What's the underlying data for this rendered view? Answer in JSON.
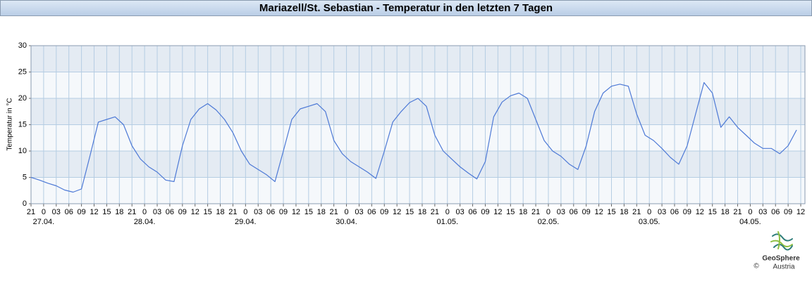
{
  "chart_data": {
    "type": "line",
    "title": "Mariazell/St. Sebastian - Temperatur in den letzten 7 Tagen",
    "ylabel": "Temperatur in °C",
    "color": "#4d79d6",
    "grid": true,
    "ylim": [
      0,
      30
    ],
    "yticks": [
      0,
      5,
      10,
      15,
      20,
      25,
      30
    ],
    "xlim": [
      "26.04. 21:00",
      "04.05. 13:00"
    ],
    "xticks": [
      {
        "value": "26.04. 21:00",
        "label": "21"
      },
      {
        "value": "27.04. 00:00",
        "label": "0"
      },
      {
        "value": "27.04. 03:00",
        "label": "03"
      },
      {
        "value": "27.04. 06:00",
        "label": "06"
      },
      {
        "value": "27.04. 09:00",
        "label": "09"
      },
      {
        "value": "27.04. 12:00",
        "label": "12"
      },
      {
        "value": "27.04. 15:00",
        "label": "15"
      },
      {
        "value": "27.04. 18:00",
        "label": "18"
      },
      {
        "value": "27.04. 21:00",
        "label": "21"
      },
      {
        "value": "28.04. 00:00",
        "label": "0"
      },
      {
        "value": "28.04. 03:00",
        "label": "03"
      },
      {
        "value": "28.04. 06:00",
        "label": "06"
      },
      {
        "value": "28.04. 09:00",
        "label": "09"
      },
      {
        "value": "28.04. 12:00",
        "label": "12"
      },
      {
        "value": "28.04. 15:00",
        "label": "15"
      },
      {
        "value": "28.04. 18:00",
        "label": "18"
      },
      {
        "value": "28.04. 21:00",
        "label": "21"
      },
      {
        "value": "29.04. 00:00",
        "label": "0"
      },
      {
        "value": "29.04. 03:00",
        "label": "03"
      },
      {
        "value": "29.04. 06:00",
        "label": "06"
      },
      {
        "value": "29.04. 09:00",
        "label": "09"
      },
      {
        "value": "29.04. 12:00",
        "label": "12"
      },
      {
        "value": "29.04. 15:00",
        "label": "15"
      },
      {
        "value": "29.04. 18:00",
        "label": "18"
      },
      {
        "value": "29.04. 21:00",
        "label": "21"
      },
      {
        "value": "30.04. 00:00",
        "label": "0"
      },
      {
        "value": "30.04. 03:00",
        "label": "03"
      },
      {
        "value": "30.04. 06:00",
        "label": "06"
      },
      {
        "value": "30.04. 09:00",
        "label": "09"
      },
      {
        "value": "30.04. 12:00",
        "label": "12"
      },
      {
        "value": "30.04. 15:00",
        "label": "15"
      },
      {
        "value": "30.04. 18:00",
        "label": "18"
      },
      {
        "value": "30.04. 21:00",
        "label": "21"
      },
      {
        "value": "01.05. 00:00",
        "label": "0"
      },
      {
        "value": "01.05. 03:00",
        "label": "03"
      },
      {
        "value": "01.05. 06:00",
        "label": "06"
      },
      {
        "value": "01.05. 09:00",
        "label": "09"
      },
      {
        "value": "01.05. 12:00",
        "label": "12"
      },
      {
        "value": "01.05. 15:00",
        "label": "15"
      },
      {
        "value": "01.05. 18:00",
        "label": "18"
      },
      {
        "value": "01.05. 21:00",
        "label": "21"
      },
      {
        "value": "02.05. 00:00",
        "label": "0"
      },
      {
        "value": "02.05. 03:00",
        "label": "03"
      },
      {
        "value": "02.05. 06:00",
        "label": "06"
      },
      {
        "value": "02.05. 09:00",
        "label": "09"
      },
      {
        "value": "02.05. 12:00",
        "label": "12"
      },
      {
        "value": "02.05. 15:00",
        "label": "15"
      },
      {
        "value": "02.05. 18:00",
        "label": "18"
      },
      {
        "value": "02.05. 21:00",
        "label": "21"
      },
      {
        "value": "03.05. 00:00",
        "label": "0"
      },
      {
        "value": "03.05. 03:00",
        "label": "03"
      },
      {
        "value": "03.05. 06:00",
        "label": "06"
      },
      {
        "value": "03.05. 09:00",
        "label": "09"
      },
      {
        "value": "03.05. 12:00",
        "label": "12"
      },
      {
        "value": "03.05. 15:00",
        "label": "15"
      },
      {
        "value": "03.05. 18:00",
        "label": "18"
      },
      {
        "value": "03.05. 21:00",
        "label": "21"
      },
      {
        "value": "04.05. 00:00",
        "label": "0"
      },
      {
        "value": "04.05. 03:00",
        "label": "03"
      },
      {
        "value": "04.05. 06:00",
        "label": "06"
      },
      {
        "value": "04.05. 09:00",
        "label": "09"
      },
      {
        "value": "04.05. 12:00",
        "label": "12"
      }
    ],
    "date_ticks": [
      {
        "value": "27.04. 00:00",
        "label": "27.04."
      },
      {
        "value": "28.04. 00:00",
        "label": "28.04."
      },
      {
        "value": "29.04. 00:00",
        "label": "29.04."
      },
      {
        "value": "30.04. 00:00",
        "label": "30.04."
      },
      {
        "value": "01.05. 00:00",
        "label": "01.05."
      },
      {
        "value": "02.05. 00:00",
        "label": "02.05."
      },
      {
        "value": "03.05. 00:00",
        "label": "03.05."
      },
      {
        "value": "04.05. 00:00",
        "label": "04.05."
      }
    ],
    "x": [
      "26.04. 21:00",
      "26.04. 23:00",
      "27.04. 01:00",
      "27.04. 03:00",
      "27.04. 05:00",
      "27.04. 07:00",
      "27.04. 09:00",
      "27.04. 11:00",
      "27.04. 13:00",
      "27.04. 15:00",
      "27.04. 17:00",
      "27.04. 19:00",
      "27.04. 21:00",
      "27.04. 23:00",
      "28.04. 01:00",
      "28.04. 03:00",
      "28.04. 05:00",
      "28.04. 07:00",
      "28.04. 09:00",
      "28.04. 11:00",
      "28.04. 13:00",
      "28.04. 15:00",
      "28.04. 17:00",
      "28.04. 19:00",
      "28.04. 21:00",
      "28.04. 23:00",
      "29.04. 01:00",
      "29.04. 03:00",
      "29.04. 05:00",
      "29.04. 07:00",
      "29.04. 09:00",
      "29.04. 11:00",
      "29.04. 13:00",
      "29.04. 15:00",
      "29.04. 17:00",
      "29.04. 19:00",
      "29.04. 21:00",
      "29.04. 23:00",
      "30.04. 01:00",
      "30.04. 03:00",
      "30.04. 05:00",
      "30.04. 07:00",
      "30.04. 09:00",
      "30.04. 11:00",
      "30.04. 13:00",
      "30.04. 15:00",
      "30.04. 17:00",
      "30.04. 19:00",
      "30.04. 21:00",
      "30.04. 23:00",
      "01.05. 01:00",
      "01.05. 03:00",
      "01.05. 05:00",
      "01.05. 07:00",
      "01.05. 09:00",
      "01.05. 11:00",
      "01.05. 13:00",
      "01.05. 15:00",
      "01.05. 17:00",
      "01.05. 19:00",
      "01.05. 21:00",
      "01.05. 23:00",
      "02.05. 01:00",
      "02.05. 03:00",
      "02.05. 05:00",
      "02.05. 07:00",
      "02.05. 09:00",
      "02.05. 11:00",
      "02.05. 13:00",
      "02.05. 15:00",
      "02.05. 17:00",
      "02.05. 19:00",
      "02.05. 21:00",
      "02.05. 23:00",
      "03.05. 01:00",
      "03.05. 03:00",
      "03.05. 05:00",
      "03.05. 07:00",
      "03.05. 09:00",
      "03.05. 11:00",
      "03.05. 13:00",
      "03.05. 15:00",
      "03.05. 17:00",
      "03.05. 19:00",
      "03.05. 21:00",
      "03.05. 23:00",
      "04.05. 01:00",
      "04.05. 03:00",
      "04.05. 05:00",
      "04.05. 07:00",
      "04.05. 09:00",
      "04.05. 11:00"
    ],
    "values": [
      5.0,
      4.5,
      3.9,
      3.4,
      2.6,
      2.2,
      2.8,
      9,
      15.5,
      16,
      16.5,
      15,
      11,
      8.5,
      7,
      6,
      4.5,
      4.2,
      11,
      16,
      18,
      19,
      17.8,
      16,
      13.5,
      10,
      7.5,
      6.5,
      5.5,
      4.2,
      10,
      16,
      18,
      18.5,
      19,
      17.5,
      12,
      9.5,
      8,
      7,
      6,
      4.8,
      10,
      15.5,
      17.5,
      19.2,
      20,
      18.5,
      13,
      10,
      8.5,
      7,
      5.8,
      4.7,
      8,
      16.5,
      19.3,
      20.5,
      21,
      20,
      16,
      12,
      10,
      9,
      7.5,
      6.5,
      11,
      17.5,
      21,
      22.3,
      22.7,
      22.3,
      17,
      13,
      12,
      10.5,
      8.8,
      7.5,
      11,
      17,
      23,
      21,
      14.5,
      16.5,
      14.5,
      13,
      11.5,
      10.5,
      10.5,
      9.5,
      11,
      14
    ]
  },
  "footer": {
    "brand": "GeoSphere",
    "brand_sub": "Austria",
    "copyright": "©"
  }
}
